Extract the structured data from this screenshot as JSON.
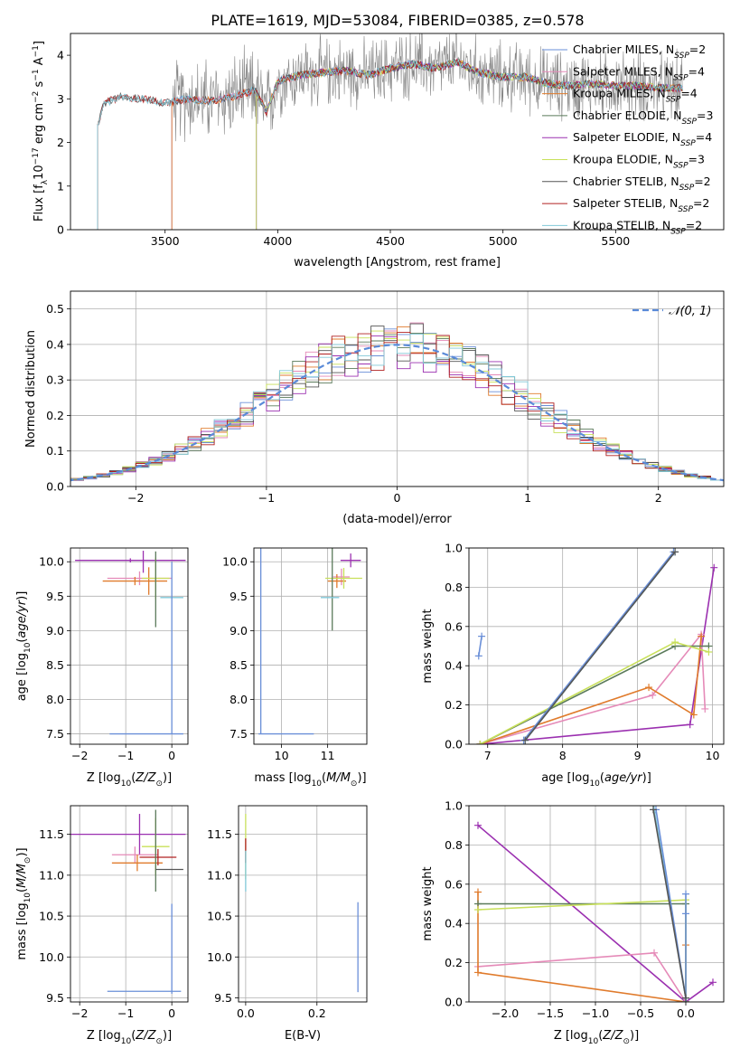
{
  "figure": {
    "title": "PLATE=1619, MJD=53084, FIBERID=0385, z=0.578"
  },
  "colors": {
    "chabrier_miles": "#6a8fd8",
    "salpeter_miles": "#e58ab8",
    "kroupa_miles": "#e07b2c",
    "chabrier_elodie": "#5a7a5a",
    "salpeter_elodie": "#9b30b0",
    "kroupa_elodie": "#c8e05a",
    "chabrier_stelib": "#555555",
    "salpeter_stelib": "#b02020",
    "kroupa_stelib": "#80c8d8",
    "grid": "#b0b0b0"
  },
  "chart_data": [
    {
      "id": "spectrum",
      "type": "line",
      "xlabel": "wavelength [Angstrom, rest frame]",
      "ylabel": "Flux [f_λ 10^-17 erg cm^-2 s^-1 A^-1]",
      "xlim": [
        3080,
        5980
      ],
      "ylim": [
        0,
        4.5
      ],
      "xticks": [
        3500,
        4000,
        4500,
        5000,
        5500
      ],
      "yticks": [
        0,
        1,
        2,
        3,
        4
      ],
      "grid": false,
      "legend_position": "top-right",
      "legend": [
        {
          "label": "Chabrier MILES, N_SSP=2",
          "main": "Chabrier MILES, N",
          "sub": "SSP",
          "tail": "=2",
          "color": "#6a8fd8"
        },
        {
          "label": "Salpeter MILES, N_SSP=4",
          "main": "Salpeter MILES, N",
          "sub": "SSP",
          "tail": "=4",
          "color": "#e58ab8"
        },
        {
          "label": "Kroupa MILES, N_SSP=4",
          "main": "Kroupa MILES, N",
          "sub": "SSP",
          "tail": "=4",
          "color": "#e07b2c"
        },
        {
          "label": "Chabrier ELODIE, N_SSP=3",
          "main": "Chabrier ELODIE, N",
          "sub": "SSP",
          "tail": "=3",
          "color": "#5a7a5a"
        },
        {
          "label": "Salpeter ELODIE, N_SSP=4",
          "main": "Salpeter ELODIE, N",
          "sub": "SSP",
          "tail": "=4",
          "color": "#9b30b0"
        },
        {
          "label": "Kroupa ELODIE, N_SSP=3",
          "main": "Kroupa ELODIE, N",
          "sub": "SSP",
          "tail": "=3",
          "color": "#c8e05a"
        },
        {
          "label": "Chabrier STELIB, N_SSP=2",
          "main": "Chabrier STELIB, N",
          "sub": "SSP",
          "tail": "=2",
          "color": "#555555"
        },
        {
          "label": "Salpeter STELIB, N_SSP=2",
          "main": "Salpeter STELIB, N",
          "sub": "SSP",
          "tail": "=2",
          "color": "#b02020"
        },
        {
          "label": "Kroupa STELIB, N_SSP=2",
          "main": "Kroupa STELIB, N",
          "sub": "SSP",
          "tail": "=2",
          "color": "#80c8d8"
        }
      ],
      "model_start_wavelength": {
        "miles": 3530,
        "elodie": 3905,
        "stelib": 3200
      },
      "continuum": {
        "x": [
          3200,
          3230,
          3300,
          3400,
          3500,
          3600,
          3700,
          3800,
          3900,
          3950,
          4000,
          4100,
          4200,
          4300,
          4400,
          4500,
          4600,
          4700,
          4800,
          4850,
          4900,
          5000,
          5100,
          5200,
          5300,
          5400,
          5500,
          5600,
          5700,
          5800
        ],
        "y": [
          2.4,
          2.9,
          3.05,
          3.0,
          2.9,
          3.0,
          2.95,
          3.05,
          3.2,
          2.7,
          3.4,
          3.55,
          3.6,
          3.65,
          3.55,
          3.7,
          3.8,
          3.7,
          3.85,
          3.7,
          3.6,
          3.5,
          3.5,
          3.35,
          3.3,
          3.35,
          3.3,
          3.3,
          3.25,
          3.25
        ]
      }
    },
    {
      "id": "residuals",
      "type": "histogram",
      "xlabel": "(data-model)/error",
      "ylabel": "Normed distribution",
      "xlim": [
        -2.5,
        2.5
      ],
      "ylim": [
        0,
        0.55
      ],
      "xticks": [
        -2,
        -1,
        0,
        1,
        2
      ],
      "yticks": [
        0.0,
        0.1,
        0.2,
        0.3,
        0.4,
        0.5
      ],
      "grid": true,
      "bin_width": 0.1,
      "legend_position": "top-right",
      "reference_curve": {
        "label": "𝒩(0, 1)",
        "mean": 0,
        "sigma": 1,
        "style": "dashed"
      }
    },
    {
      "id": "age_vs_Z",
      "type": "scatter",
      "xlabel": "Z [log10(Z/Z⊙)]",
      "ylabel": "age [log10(age/yr)]",
      "xlim": [
        -2.2,
        0.35
      ],
      "ylim": [
        7.35,
        10.2
      ],
      "xticks": [
        -2,
        -1,
        0
      ],
      "yticks": [
        7.5,
        8.0,
        8.5,
        9.0,
        9.5,
        10.0
      ],
      "grid": true,
      "points": [
        {
          "x": -0.9,
          "y": 10.02,
          "xerr": 1.2,
          "yerr": 0.03,
          "color": "#9b30b0"
        },
        {
          "x": -0.62,
          "y": 10.0,
          "xerr": 0.0,
          "yerr": 0.16,
          "color": "#9b30b0"
        },
        {
          "x": -0.7,
          "y": 9.76,
          "xerr": 0.7,
          "yerr": 0.1,
          "color": "#e58ab8"
        },
        {
          "x": -0.8,
          "y": 9.72,
          "xerr": 0.7,
          "yerr": 0.06,
          "color": "#e07b2c"
        },
        {
          "x": -0.5,
          "y": 9.72,
          "xerr": 0.0,
          "yerr": 0.2,
          "color": "#e07b2c"
        },
        {
          "x": -0.35,
          "y": 9.76,
          "xerr": 0.3,
          "yerr": 0.3,
          "color": "#c8e05a"
        },
        {
          "x": -0.35,
          "y": 9.6,
          "xerr": 0.0,
          "yerr": 0.55,
          "color": "#5a7a5a"
        },
        {
          "x": 0.0,
          "y": 9.48,
          "xerr": 0.25,
          "yerr": 0.0,
          "color": "#80c8d8"
        },
        {
          "x": 0.0,
          "y": 8.75,
          "xerr": 0.0,
          "yerr": 1.25,
          "color": "#6a8fd8"
        },
        {
          "x": -0.55,
          "y": 7.5,
          "xerr": 0.8,
          "yerr": 0.0,
          "color": "#6a8fd8"
        }
      ]
    },
    {
      "id": "age_vs_mass",
      "type": "scatter",
      "xlabel": "mass [log10(M/M⊙)]",
      "ylabel": "",
      "xlim": [
        9.4,
        11.85
      ],
      "ylim": [
        7.35,
        10.2
      ],
      "xticks": [
        10,
        11
      ],
      "yticks": [
        7.5,
        8.0,
        8.5,
        9.0,
        9.5,
        10.0
      ],
      "grid": true,
      "points": [
        {
          "x": 11.5,
          "y": 10.02,
          "xerr": 0.22,
          "yerr": 0.1,
          "color": "#9b30b0"
        },
        {
          "x": 11.3,
          "y": 9.78,
          "xerr": 0.18,
          "yerr": 0.12,
          "color": "#e58ab8"
        },
        {
          "x": 11.2,
          "y": 9.72,
          "xerr": 0.2,
          "yerr": 0.1,
          "color": "#e07b2c"
        },
        {
          "x": 11.35,
          "y": 9.76,
          "xerr": 0.4,
          "yerr": 0.15,
          "color": "#c8e05a"
        },
        {
          "x": 11.1,
          "y": 9.6,
          "xerr": 0.0,
          "yerr": 0.6,
          "color": "#5a7a5a"
        },
        {
          "x": 11.05,
          "y": 9.48,
          "xerr": 0.2,
          "yerr": 0.0,
          "color": "#80c8d8"
        },
        {
          "x": 9.55,
          "y": 8.85,
          "xerr": 0.0,
          "yerr": 1.35,
          "color": "#6a8fd8"
        },
        {
          "x": 10.1,
          "y": 7.5,
          "xerr": 0.6,
          "yerr": 0.0,
          "color": "#6a8fd8"
        }
      ]
    },
    {
      "id": "massweight_vs_age",
      "type": "line",
      "xlabel": "age [log10(age/yr)]",
      "ylabel": "mass weight",
      "xlim": [
        6.75,
        10.15
      ],
      "ylim": [
        0,
        1.0
      ],
      "xticks": [
        7,
        8,
        9,
        10
      ],
      "yticks": [
        0.0,
        0.2,
        0.4,
        0.6,
        0.8,
        1.0
      ],
      "grid": true,
      "series": [
        {
          "color": "#9b30b0",
          "x": [
            6.9,
            9.7,
            10.02
          ],
          "y": [
            0.0,
            0.1,
            0.9
          ]
        },
        {
          "color": "#e58ab8",
          "x": [
            6.9,
            9.2,
            9.85,
            9.9
          ],
          "y": [
            0.0,
            0.25,
            0.56,
            0.18
          ]
        },
        {
          "color": "#e07b2c",
          "x": [
            6.9,
            9.15,
            9.75,
            9.85
          ],
          "y": [
            0.0,
            0.29,
            0.15,
            0.55
          ]
        },
        {
          "color": "#5a7a5a",
          "x": [
            6.9,
            9.5,
            9.95
          ],
          "y": [
            0.0,
            0.5,
            0.5
          ]
        },
        {
          "color": "#c8e05a",
          "x": [
            6.9,
            9.5,
            9.95
          ],
          "y": [
            0.0,
            0.52,
            0.47
          ]
        },
        {
          "color": "#6a8fd8",
          "x": [
            6.88,
            6.92
          ],
          "y": [
            0.45,
            0.55
          ]
        },
        {
          "color": "#80c8d8",
          "x": [
            7.5,
            9.5
          ],
          "y": [
            0.02,
            0.98
          ]
        },
        {
          "color": "#6a8fd8",
          "x": [
            7.48,
            9.48
          ],
          "y": [
            0.02,
            0.98
          ]
        },
        {
          "color": "#555555",
          "x": [
            7.5,
            9.5
          ],
          "y": [
            0.02,
            0.98
          ]
        }
      ]
    },
    {
      "id": "mass_vs_Z",
      "type": "scatter",
      "xlabel": "Z [log10(Z/Z⊙)]",
      "ylabel": "mass [log10(M/M⊙)]",
      "xlim": [
        -2.2,
        0.35
      ],
      "ylim": [
        9.45,
        11.85
      ],
      "xticks": [
        -2,
        -1,
        0
      ],
      "yticks": [
        9.5,
        10.0,
        10.5,
        11.0,
        11.5
      ],
      "grid": true,
      "points": [
        {
          "x": -1.0,
          "y": 11.5,
          "xerr": 1.3,
          "yerr": 0.0,
          "color": "#9b30b0"
        },
        {
          "x": -0.7,
          "y": 11.5,
          "xerr": 0.0,
          "yerr": 0.25,
          "color": "#9b30b0"
        },
        {
          "x": -0.8,
          "y": 11.25,
          "xerr": 0.5,
          "yerr": 0.1,
          "color": "#e58ab8"
        },
        {
          "x": -0.75,
          "y": 11.15,
          "xerr": 0.55,
          "yerr": 0.1,
          "color": "#e07b2c"
        },
        {
          "x": -0.35,
          "y": 11.35,
          "xerr": 0.3,
          "yerr": 0.35,
          "color": "#c8e05a"
        },
        {
          "x": -0.3,
          "y": 11.22,
          "xerr": 0.4,
          "yerr": 0.1,
          "color": "#b02020"
        },
        {
          "x": -0.35,
          "y": 11.3,
          "xerr": 0.0,
          "yerr": 0.5,
          "color": "#5a7a5a"
        },
        {
          "x": -0.05,
          "y": 11.07,
          "xerr": 0.3,
          "yerr": 0.0,
          "color": "#555555"
        },
        {
          "x": 0.0,
          "y": 10.1,
          "xerr": 0.0,
          "yerr": 0.55,
          "color": "#6a8fd8"
        },
        {
          "x": -0.6,
          "y": 9.58,
          "xerr": 0.8,
          "yerr": 0.0,
          "color": "#6a8fd8"
        }
      ]
    },
    {
      "id": "mass_vs_EBV",
      "type": "scatter",
      "xlabel": "E(B-V)",
      "ylabel": "",
      "xlim": [
        -0.02,
        0.34
      ],
      "ylim": [
        9.45,
        11.85
      ],
      "xticks": [
        0.0,
        0.2
      ],
      "yticks": [
        9.5,
        10.0,
        10.5,
        11.0,
        11.5
      ],
      "grid": true,
      "points": [
        {
          "x": 0.0,
          "y": 11.35,
          "xerr": 0.0,
          "yerr": 0.4,
          "color": "#c8e05a"
        },
        {
          "x": 0.0,
          "y": 11.3,
          "xerr": 0.0,
          "yerr": 0.15,
          "color": "#b02020"
        },
        {
          "x": 0.0,
          "y": 11.05,
          "xerr": 0.0,
          "yerr": 0.25,
          "color": "#80c8d8"
        },
        {
          "x": 0.315,
          "y": 10.12,
          "xerr": 0.0,
          "yerr": 0.55,
          "color": "#6a8fd8"
        }
      ]
    },
    {
      "id": "massweight_vs_Z",
      "type": "line",
      "xlabel": "Z [log10(Z/Z⊙)]",
      "ylabel": "mass weight",
      "xlim": [
        -2.4,
        0.42
      ],
      "ylim": [
        0,
        1.0
      ],
      "xticks": [
        -2.0,
        -1.5,
        -1.0,
        -0.5,
        0.0
      ],
      "yticks": [
        0.0,
        0.2,
        0.4,
        0.6,
        0.8,
        1.0
      ],
      "grid": true,
      "series": [
        {
          "color": "#9b30b0",
          "x": [
            -2.3,
            0.0,
            0.3
          ],
          "y": [
            0.9,
            0.0,
            0.1
          ]
        },
        {
          "color": "#e58ab8",
          "x": [
            -2.3,
            -0.35,
            0.0
          ],
          "y": [
            0.18,
            0.25,
            0.0
          ]
        },
        {
          "color": "#e07b2c",
          "x": [
            -2.3,
            -2.3,
            0.0,
            0.0,
            0.0
          ],
          "y": [
            0.56,
            0.15,
            0.0,
            0.29,
            0.0
          ]
        },
        {
          "color": "#5a7a5a",
          "x": [
            -2.3,
            0.0,
            0.0
          ],
          "y": [
            0.5,
            0.5,
            0.0
          ]
        },
        {
          "color": "#c8e05a",
          "x": [
            -2.3,
            0.0,
            0.0
          ],
          "y": [
            0.47,
            0.52,
            0.0
          ]
        },
        {
          "color": "#6a8fd8",
          "x": [
            0.0,
            0.0,
            0.0
          ],
          "y": [
            0.55,
            0.45,
            0.0
          ]
        },
        {
          "color": "#80c8d8",
          "x": [
            -0.35,
            0.0
          ],
          "y": [
            0.98,
            0.02
          ]
        },
        {
          "color": "#6a8fd8",
          "x": [
            -0.33,
            0.0
          ],
          "y": [
            0.98,
            0.02
          ]
        },
        {
          "color": "#555555",
          "x": [
            -0.36,
            0.0
          ],
          "y": [
            0.98,
            0.02
          ]
        }
      ]
    }
  ]
}
